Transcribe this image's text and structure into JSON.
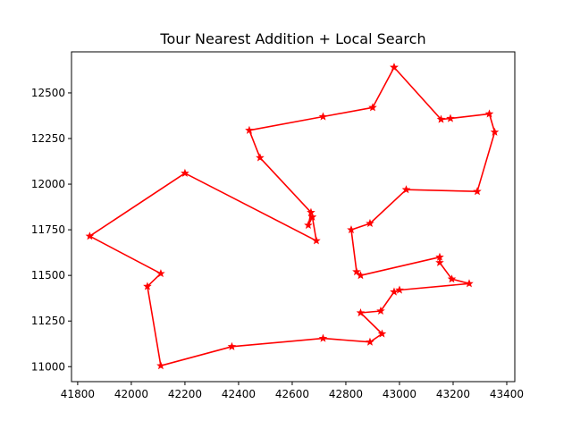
{
  "chart_data": {
    "type": "line",
    "title": "Tour Nearest Addition + Local Search",
    "xlabel": "",
    "ylabel": "",
    "xlim": [
      41777,
      43430
    ],
    "ylim": [
      10918,
      12725
    ],
    "xticks": [
      41800,
      42000,
      42200,
      42400,
      42600,
      42800,
      43000,
      43200,
      43400
    ],
    "yticks": [
      11000,
      11250,
      11500,
      11750,
      12000,
      12250,
      12500
    ],
    "grid": false,
    "legend": "none",
    "colors": {
      "series": "#ff0000",
      "axes": "#000000",
      "background": "#ffffff"
    },
    "marker": "star",
    "series": [
      {
        "x": [
          42980,
          43155,
          43190,
          43335,
          43355,
          43290,
          43025,
          42890,
          42820,
          42840,
          42855,
          43150,
          43150,
          43195,
          43260,
          43000,
          42980,
          42930,
          42855,
          42935,
          42890,
          42715,
          42375,
          42110,
          42060,
          42110,
          41845,
          42200,
          42690,
          42675,
          42660,
          42670,
          42480,
          42440,
          42715,
          42900,
          42980
        ],
        "y": [
          12640,
          12355,
          12360,
          12385,
          12285,
          11960,
          11970,
          11785,
          11750,
          11520,
          11500,
          11600,
          11570,
          11480,
          11455,
          11420,
          11410,
          11305,
          11295,
          11180,
          11135,
          11155,
          11110,
          11005,
          11440,
          11510,
          11715,
          12060,
          11690,
          11820,
          11775,
          11845,
          12145,
          12295,
          12370,
          12420,
          12640
        ]
      }
    ]
  }
}
